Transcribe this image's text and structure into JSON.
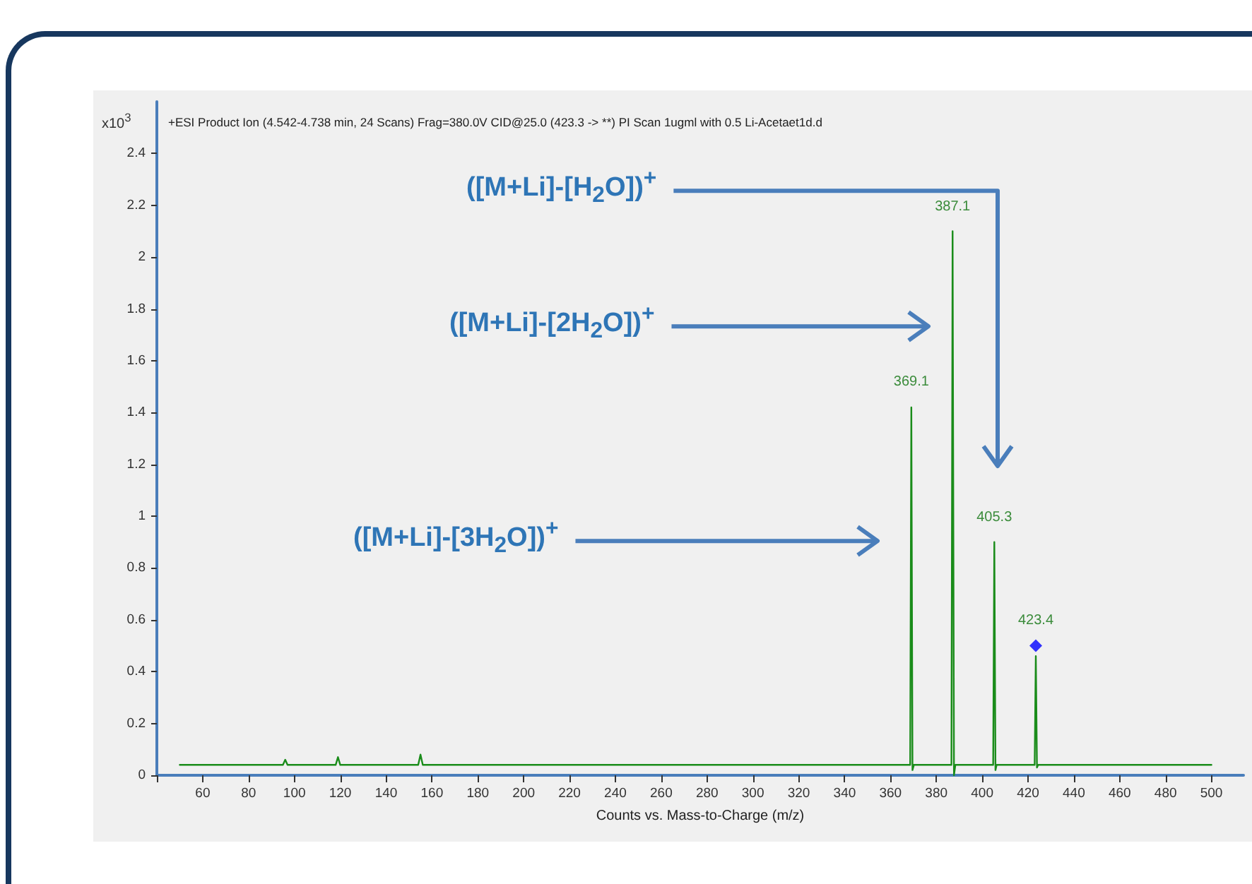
{
  "chart_data": {
    "type": "line",
    "title": "+ESI Product Ion (4.542-4.738 min, 24 Scans) Frag=380.0V CID@25.0 (423.3 -> **) PI Scan 1ugml with 0.5 Li-Acetaet1d.d",
    "xlabel": "Counts vs. Mass-to-Charge (m/z)",
    "ylabel": "x10$^{3}$",
    "series": [
      {
        "color": "#1a8c1a",
        "marker": "none",
        "line_style": "solid",
        "x": [
          50,
          95,
          96,
          97,
          118,
          119,
          120,
          154,
          155,
          156,
          368.6,
          369.1,
          369.6,
          370.2,
          386.6,
          387.1,
          387.7,
          388.3,
          404.8,
          405.3,
          405.8,
          406.3,
          422.9,
          423.4,
          423.9,
          424.4,
          500
        ],
        "values": [
          0.04,
          0.04,
          0.06,
          0.04,
          0.04,
          0.07,
          0.04,
          0.04,
          0.08,
          0.04,
          0.04,
          1.42,
          0.02,
          0.04,
          0.04,
          2.1,
          0.0,
          0.04,
          0.04,
          0.9,
          0.02,
          0.04,
          0.04,
          0.46,
          0.03,
          0.04,
          0.04
        ]
      },
      {
        "type": "scatter",
        "color": "#0000ff",
        "marker": "diamond",
        "x": [
          423.4
        ],
        "values": [
          0.5
        ]
      }
    ],
    "annotations": [
      {
        "text": "369.1",
        "x": 369.1,
        "y": 1.42
      },
      {
        "text": "387.1",
        "x": 387.1,
        "y": 2.1
      },
      {
        "text": "405.3",
        "x": 405.3,
        "y": 0.9
      },
      {
        "text": "423.4",
        "x": 423.4,
        "y": 0.5
      },
      "([M+Li]-[H$_{2}$O])$^{+}$",
      "([M+Li]-[2H$_{2}$O])$^{+}$",
      "([M+Li]-[3H$_{2}$O])$^{+}$"
    ],
    "xlim": [
      40,
      514
    ],
    "xticks": [
      {
        "value": 40,
        "label": null
      },
      60,
      80,
      100,
      120,
      140,
      160,
      180,
      200,
      220,
      240,
      260,
      280,
      300,
      320,
      340,
      360,
      380,
      400,
      420,
      440,
      460,
      480,
      500
    ],
    "ylim": [
      0,
      2.6
    ],
    "yticks": [
      0,
      0.2,
      0.4,
      0.6,
      0.8,
      1,
      1.2,
      1.4,
      1.6,
      1.8,
      2,
      2.2,
      2.4
    ],
    "grid": false
  }
}
